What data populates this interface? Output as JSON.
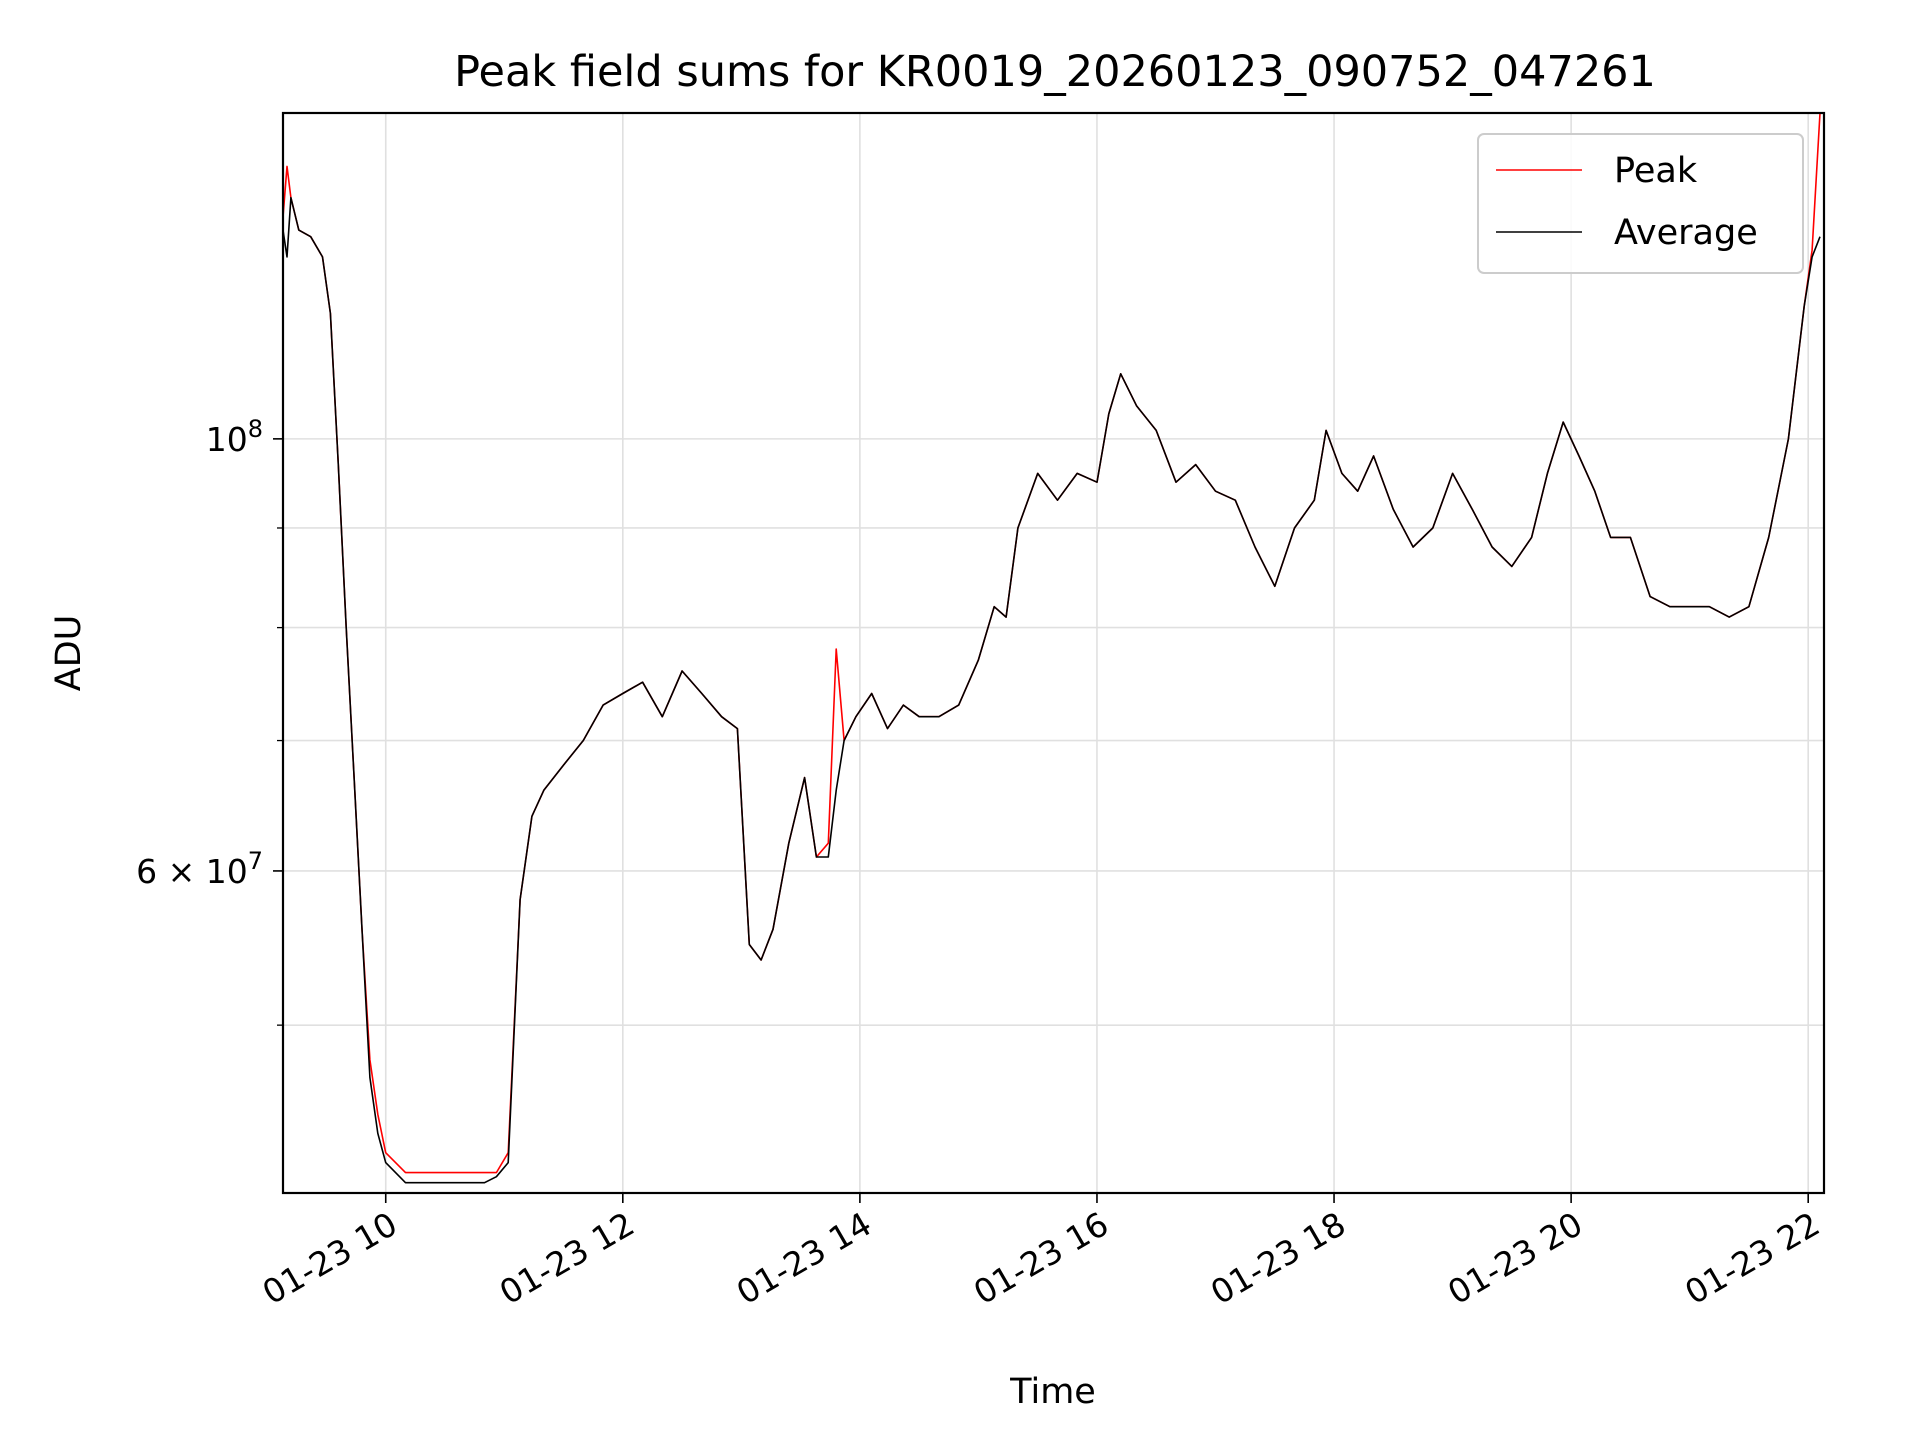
{
  "chart_data": {
    "type": "line",
    "title": "Peak field sums for KR0019_20260123_090752_047261",
    "xlabel": "Time",
    "ylabel": "ADU",
    "yscale": "log",
    "xlim": [
      "01-23 09:08",
      "01-23 22:08"
    ],
    "ylim": [
      41000000,
      147000000
    ],
    "x_ticks": [
      "01-23 10",
      "01-23 12",
      "01-23 14",
      "01-23 16",
      "01-23 18",
      "01-23 20",
      "01-23 22"
    ],
    "y_ticks_major": [
      {
        "value": 100000000,
        "mantissa": "",
        "base": "10",
        "exp": "8"
      },
      {
        "value": 60000000,
        "mantissa": "6 × ",
        "base": "10",
        "exp": "7"
      }
    ],
    "y_ticks_minor": [
      50000000,
      70000000,
      80000000,
      90000000
    ],
    "grid": true,
    "legend_position": "top-right",
    "colors": {
      "peak": "#ff0000",
      "average": "#000000",
      "grid": "#e0e0e0"
    },
    "series": [
      {
        "name": "Peak",
        "x": [
          "01-23 09:08",
          "01-23 09:10",
          "01-23 09:12",
          "01-23 09:16",
          "01-23 09:22",
          "01-23 09:28",
          "01-23 09:32",
          "01-23 09:36",
          "01-23 09:40",
          "01-23 09:44",
          "01-23 09:48",
          "01-23 09:52",
          "01-23 09:56",
          "01-23 10:00",
          "01-23 10:10",
          "01-23 10:20",
          "01-23 10:30",
          "01-23 10:40",
          "01-23 10:50",
          "01-23 10:56",
          "01-23 11:02",
          "01-23 11:08",
          "01-23 11:14",
          "01-23 11:20",
          "01-23 11:30",
          "01-23 11:40",
          "01-23 11:50",
          "01-23 12:00",
          "01-23 12:10",
          "01-23 12:20",
          "01-23 12:30",
          "01-23 12:40",
          "01-23 12:50",
          "01-23 12:58",
          "01-23 13:04",
          "01-23 13:10",
          "01-23 13:16",
          "01-23 13:24",
          "01-23 13:32",
          "01-23 13:38",
          "01-23 13:44",
          "01-23 13:48",
          "01-23 13:52",
          "01-23 13:58",
          "01-23 14:06",
          "01-23 14:14",
          "01-23 14:22",
          "01-23 14:30",
          "01-23 14:40",
          "01-23 14:50",
          "01-23 15:00",
          "01-23 15:08",
          "01-23 15:14",
          "01-23 15:20",
          "01-23 15:30",
          "01-23 15:40",
          "01-23 15:50",
          "01-23 16:00",
          "01-23 16:06",
          "01-23 16:12",
          "01-23 16:20",
          "01-23 16:30",
          "01-23 16:40",
          "01-23 16:50",
          "01-23 17:00",
          "01-23 17:10",
          "01-23 17:20",
          "01-23 17:30",
          "01-23 17:40",
          "01-23 17:50",
          "01-23 17:56",
          "01-23 18:04",
          "01-23 18:12",
          "01-23 18:20",
          "01-23 18:30",
          "01-23 18:40",
          "01-23 18:50",
          "01-23 19:00",
          "01-23 19:10",
          "01-23 19:20",
          "01-23 19:30",
          "01-23 19:40",
          "01-23 19:48",
          "01-23 19:56",
          "01-23 20:04",
          "01-23 20:12",
          "01-23 20:20",
          "01-23 20:30",
          "01-23 20:40",
          "01-23 20:50",
          "01-23 21:00",
          "01-23 21:10",
          "01-23 21:20",
          "01-23 21:30",
          "01-23 21:40",
          "01-23 21:50",
          "01-23 21:58",
          "01-23 22:02",
          "01-23 22:06"
        ],
        "y": [
          130000000,
          138000000,
          133000000,
          128000000,
          127000000,
          124000000,
          116000000,
          97000000,
          80000000,
          67000000,
          56000000,
          48000000,
          45000000,
          43000000,
          42000000,
          42000000,
          42000000,
          42000000,
          42000000,
          42000000,
          43000000,
          58000000,
          64000000,
          66000000,
          68000000,
          70000000,
          73000000,
          74000000,
          75000000,
          72000000,
          76000000,
          74000000,
          72000000,
          71000000,
          55000000,
          54000000,
          56000000,
          62000000,
          67000000,
          61000000,
          62000000,
          78000000,
          70000000,
          72000000,
          74000000,
          71000000,
          73000000,
          72000000,
          72000000,
          73000000,
          77000000,
          82000000,
          81000000,
          90000000,
          96000000,
          93000000,
          96000000,
          95000000,
          103000000,
          108000000,
          104000000,
          101000000,
          95000000,
          97000000,
          94000000,
          93000000,
          88000000,
          84000000,
          90000000,
          93000000,
          101000000,
          96000000,
          94000000,
          98000000,
          92000000,
          88000000,
          90000000,
          96000000,
          92000000,
          88000000,
          86000000,
          89000000,
          96000000,
          102000000,
          98000000,
          94000000,
          89000000,
          89000000,
          83000000,
          82000000,
          82000000,
          82000000,
          81000000,
          82000000,
          89000000,
          100000000,
          117000000,
          125000000,
          147000000
        ]
      },
      {
        "name": "Average",
        "x": [
          "01-23 09:08",
          "01-23 09:10",
          "01-23 09:12",
          "01-23 09:16",
          "01-23 09:22",
          "01-23 09:28",
          "01-23 09:32",
          "01-23 09:36",
          "01-23 09:40",
          "01-23 09:44",
          "01-23 09:48",
          "01-23 09:52",
          "01-23 09:56",
          "01-23 10:00",
          "01-23 10:10",
          "01-23 10:20",
          "01-23 10:30",
          "01-23 10:40",
          "01-23 10:50",
          "01-23 10:56",
          "01-23 11:02",
          "01-23 11:08",
          "01-23 11:14",
          "01-23 11:20",
          "01-23 11:30",
          "01-23 11:40",
          "01-23 11:50",
          "01-23 12:00",
          "01-23 12:10",
          "01-23 12:20",
          "01-23 12:30",
          "01-23 12:40",
          "01-23 12:50",
          "01-23 12:58",
          "01-23 13:04",
          "01-23 13:10",
          "01-23 13:16",
          "01-23 13:24",
          "01-23 13:32",
          "01-23 13:38",
          "01-23 13:44",
          "01-23 13:48",
          "01-23 13:52",
          "01-23 13:58",
          "01-23 14:06",
          "01-23 14:14",
          "01-23 14:22",
          "01-23 14:30",
          "01-23 14:40",
          "01-23 14:50",
          "01-23 15:00",
          "01-23 15:08",
          "01-23 15:14",
          "01-23 15:20",
          "01-23 15:30",
          "01-23 15:40",
          "01-23 15:50",
          "01-23 16:00",
          "01-23 16:06",
          "01-23 16:12",
          "01-23 16:20",
          "01-23 16:30",
          "01-23 16:40",
          "01-23 16:50",
          "01-23 17:00",
          "01-23 17:10",
          "01-23 17:20",
          "01-23 17:30",
          "01-23 17:40",
          "01-23 17:50",
          "01-23 17:56",
          "01-23 18:04",
          "01-23 18:12",
          "01-23 18:20",
          "01-23 18:30",
          "01-23 18:40",
          "01-23 18:50",
          "01-23 19:00",
          "01-23 19:10",
          "01-23 19:20",
          "01-23 19:30",
          "01-23 19:40",
          "01-23 19:48",
          "01-23 19:56",
          "01-23 20:04",
          "01-23 20:12",
          "01-23 20:20",
          "01-23 20:30",
          "01-23 20:40",
          "01-23 20:50",
          "01-23 21:00",
          "01-23 21:10",
          "01-23 21:20",
          "01-23 21:30",
          "01-23 21:40",
          "01-23 21:50",
          "01-23 21:58",
          "01-23 22:02",
          "01-23 22:06"
        ],
        "y": [
          128000000,
          124000000,
          133000000,
          128000000,
          127000000,
          124000000,
          116000000,
          97000000,
          80000000,
          67000000,
          56000000,
          47000000,
          44000000,
          42500000,
          41500000,
          41500000,
          41500000,
          41500000,
          41500000,
          41800000,
          42500000,
          58000000,
          64000000,
          66000000,
          68000000,
          70000000,
          73000000,
          74000000,
          75000000,
          72000000,
          76000000,
          74000000,
          72000000,
          71000000,
          55000000,
          54000000,
          56000000,
          62000000,
          67000000,
          61000000,
          61000000,
          66000000,
          70000000,
          72000000,
          74000000,
          71000000,
          73000000,
          72000000,
          72000000,
          73000000,
          77000000,
          82000000,
          81000000,
          90000000,
          96000000,
          93000000,
          96000000,
          95000000,
          103000000,
          108000000,
          104000000,
          101000000,
          95000000,
          97000000,
          94000000,
          93000000,
          88000000,
          84000000,
          90000000,
          93000000,
          101000000,
          96000000,
          94000000,
          98000000,
          92000000,
          88000000,
          90000000,
          96000000,
          92000000,
          88000000,
          86000000,
          89000000,
          96000000,
          102000000,
          98000000,
          94000000,
          89000000,
          89000000,
          83000000,
          82000000,
          82000000,
          82000000,
          81000000,
          82000000,
          89000000,
          100000000,
          117000000,
          124000000,
          127000000
        ]
      }
    ]
  }
}
